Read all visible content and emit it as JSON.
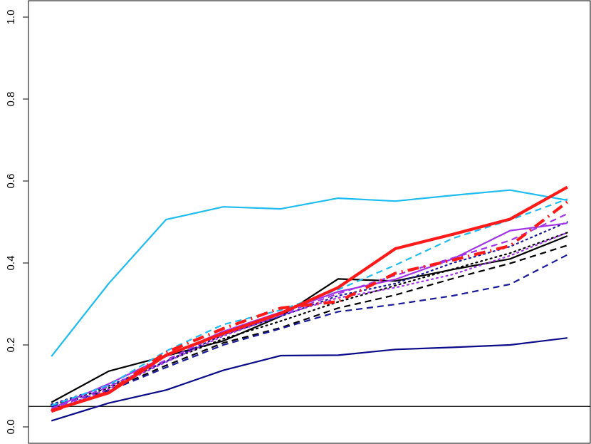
{
  "chart_data": {
    "type": "line",
    "title": "",
    "xlabel": "",
    "ylabel": "",
    "x": [
      1,
      2,
      3,
      4,
      5,
      6,
      7,
      8,
      9,
      10
    ],
    "xlim": [
      0.6,
      10.4
    ],
    "ylim": [
      -0.04,
      1.04
    ],
    "yticks": [
      0.0,
      0.2,
      0.4,
      0.6,
      0.8,
      1.0
    ],
    "ytick_labels": [
      "0.0",
      "0.2",
      "0.4",
      "0.6",
      "0.8",
      "1.0"
    ],
    "reference_line": {
      "y": 0.05,
      "color": "#000000"
    },
    "grid": false,
    "legend": "none",
    "series": [
      {
        "values": [
          0.172,
          0.35,
          0.506,
          0.537,
          0.532,
          0.558,
          0.551,
          0.565,
          0.578,
          0.553
        ],
        "color": "#1ebcf0",
        "dash": "solid",
        "width": 2.2
      },
      {
        "values": [
          0.015,
          0.058,
          0.09,
          0.138,
          0.174,
          0.175,
          0.189,
          0.194,
          0.2,
          0.217
        ],
        "color": "#0b0b8a",
        "dash": "solid",
        "width": 2.2
      },
      {
        "values": [
          0.06,
          0.136,
          0.173,
          0.21,
          0.27,
          0.361,
          0.356,
          0.384,
          0.41,
          0.466
        ],
        "color": "#000000",
        "dash": "solid",
        "width": 2.2
      },
      {
        "values": [
          0.05,
          0.09,
          0.15,
          0.205,
          0.242,
          0.29,
          0.322,
          0.362,
          0.399,
          0.443
        ],
        "color": "#000000",
        "dash": "dash",
        "width": 2.2
      },
      {
        "values": [
          0.052,
          0.095,
          0.16,
          0.215,
          0.258,
          0.305,
          0.345,
          0.385,
          0.424,
          0.474
        ],
        "color": "#000000",
        "dash": "dot",
        "width": 2.2
      },
      {
        "values": [
          0.05,
          0.088,
          0.145,
          0.2,
          0.24,
          0.281,
          0.299,
          0.32,
          0.348,
          0.42
        ],
        "color": "#1a1a9a",
        "dash": "dash",
        "width": 2.2
      },
      {
        "values": [
          0.055,
          0.1,
          0.16,
          0.225,
          0.27,
          0.32,
          0.35,
          0.4,
          0.44,
          0.5
        ],
        "color": "#1a1a9a",
        "dash": "dot",
        "width": 2.2
      },
      {
        "values": [
          0.045,
          0.105,
          0.172,
          0.233,
          0.28,
          0.33,
          0.36,
          0.41,
          0.479,
          0.497
        ],
        "color": "#a033e8",
        "dash": "solid",
        "width": 2.2
      },
      {
        "values": [
          0.042,
          0.098,
          0.163,
          0.23,
          0.275,
          0.325,
          0.37,
          0.412,
          0.455,
          0.52
        ],
        "color": "#a033e8",
        "dash": "dash",
        "width": 2.2
      },
      {
        "values": [
          0.04,
          0.092,
          0.158,
          0.222,
          0.272,
          0.315,
          0.34,
          0.372,
          0.418,
          0.474
        ],
        "color": "#a033e8",
        "dash": "dot",
        "width": 2.2
      },
      {
        "values": [
          0.052,
          0.102,
          0.185,
          0.25,
          0.285,
          0.335,
          0.395,
          0.46,
          0.505,
          0.556
        ],
        "color": "#1ebcf0",
        "dash": "dash",
        "width": 2.2
      },
      {
        "values": [
          0.04,
          0.083,
          0.175,
          0.228,
          0.277,
          0.34,
          0.435,
          0.47,
          0.507,
          0.585
        ],
        "color": "#ff1a1a",
        "dash": "solid",
        "width": 4.2
      },
      {
        "values": [
          0.038,
          0.085,
          0.182,
          0.24,
          0.29,
          0.306,
          0.375,
          0.407,
          0.442,
          0.549
        ],
        "color": "#ff1a1a",
        "dash": "dashdot",
        "width": 4.2
      }
    ]
  }
}
